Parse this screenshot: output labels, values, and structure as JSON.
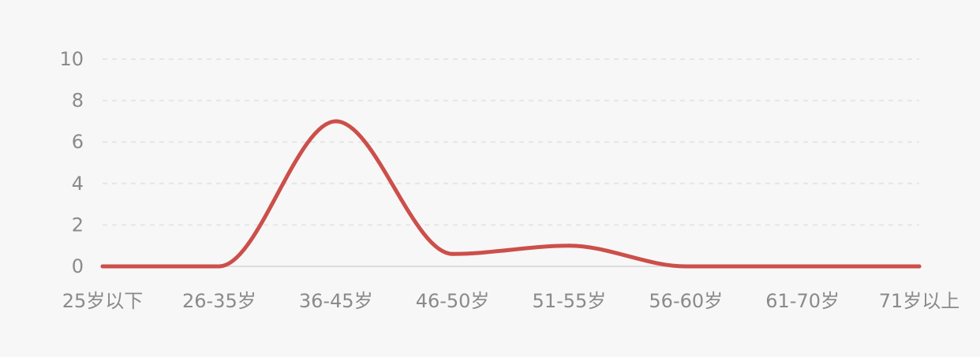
{
  "chart_data": {
    "type": "line",
    "categories": [
      "25岁以下",
      "26-35岁",
      "36-45岁",
      "46-50岁",
      "51-55岁",
      "56-60岁",
      "61-70岁",
      "71岁以上"
    ],
    "series": [
      {
        "values": [
          0,
          0,
          7,
          0.6,
          1,
          0,
          0,
          0
        ]
      }
    ],
    "y_ticks": [
      "0",
      "2",
      "4",
      "6",
      "8",
      "10"
    ],
    "ylim": [
      0,
      10
    ],
    "smooth": true,
    "grid": true,
    "line_color": "#cc4f4a",
    "grid_color": "#e6e6e6",
    "text_color": "#8a8a8a",
    "background": "#f7f7f7"
  }
}
